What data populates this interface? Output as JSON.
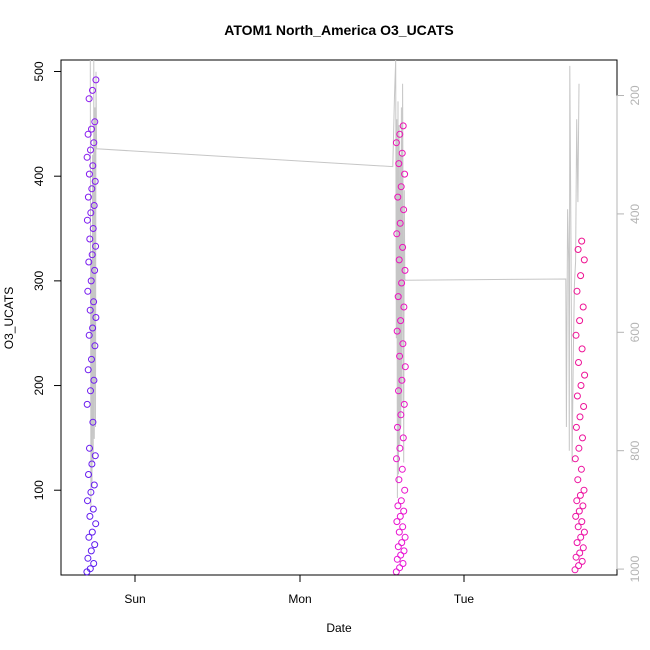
{
  "chart_data": {
    "type": "scatter",
    "title": "ATOM1 North_America O3_UCATS",
    "xlabel": "Date",
    "ylabel": "O3_UCATS",
    "x_ticks": [
      "Sun",
      "Mon",
      "Tue"
    ],
    "y_ticks": [
      100,
      200,
      300,
      400,
      500
    ],
    "y_range": [
      19,
      511
    ],
    "right_axis_ticks": [
      200,
      400,
      600,
      800,
      1000
    ],
    "right_axis_range": [
      1010,
      140
    ],
    "right_axis_reversed": true,
    "grid": false,
    "legend": "none",
    "colors": {
      "point_start": "#5a1cf0",
      "point_mid": "#e613f0",
      "point_end": "#ee1290",
      "secondary_line": "#c6c6c6",
      "right_axis": "#b4b4b4"
    },
    "series": [
      {
        "x_range": [
          "Sat 17:00",
          "Sat 18:20"
        ],
        "y_min": 22,
        "y_max": 492,
        "values": [
          22,
          25,
          30,
          35,
          42,
          48,
          55,
          60,
          68,
          75,
          82,
          90,
          98,
          105,
          115,
          125,
          133,
          140,
          165,
          182,
          195,
          205,
          215,
          225,
          238,
          248,
          255,
          265,
          272,
          280,
          290,
          300,
          310,
          318,
          325,
          333,
          340,
          350,
          358,
          365,
          372,
          380,
          388,
          395,
          402,
          410,
          418,
          425,
          432,
          440,
          445,
          452,
          474,
          482,
          492
        ]
      },
      {
        "x_range": [
          "Mon 14:00",
          "Mon 15:20"
        ],
        "y_min": 22,
        "y_max": 448,
        "values": [
          22,
          26,
          30,
          34,
          38,
          42,
          46,
          50,
          55,
          60,
          65,
          70,
          75,
          80,
          85,
          90,
          100,
          110,
          120,
          130,
          140,
          150,
          160,
          172,
          182,
          195,
          205,
          218,
          228,
          240,
          252,
          262,
          275,
          285,
          298,
          310,
          320,
          332,
          345,
          355,
          368,
          380,
          390,
          402,
          412,
          422,
          432,
          440,
          448
        ]
      },
      {
        "x_range": [
          "Tue 16:00",
          "Tue 17:25"
        ],
        "y_min": 24,
        "y_max": 338,
        "values": [
          24,
          28,
          32,
          36,
          40,
          45,
          50,
          55,
          60,
          65,
          70,
          75,
          80,
          85,
          90,
          95,
          100,
          110,
          120,
          130,
          140,
          150,
          160,
          170,
          180,
          190,
          200,
          210,
          222,
          235,
          248,
          262,
          275,
          290,
          305,
          320,
          330,
          338
        ]
      }
    ],
    "secondary_line": {
      "name": "",
      "axis": "right",
      "path_points": [
        [
          "Sat 17:30",
          140
        ],
        [
          "Sat 17:35",
          900
        ],
        [
          "Sat 17:40",
          480
        ],
        [
          "Sat 17:45",
          860
        ],
        [
          "Sat 17:50",
          300
        ],
        [
          "Sat 17:55",
          820
        ],
        [
          "Sat 18:00",
          140
        ],
        [
          "Sat 18:05",
          780
        ],
        [
          "Sat 18:10",
          220
        ],
        [
          "Sat 18:15",
          760
        ],
        [
          "Sat 18:20",
          160
        ],
        [
          "Sat 18:25",
          290
        ],
        [
          "Mon 13:30",
          320
        ],
        [
          "Mon 13:45",
          200
        ],
        [
          "Mon 13:55",
          140
        ],
        [
          "Mon 14:00",
          610
        ],
        [
          "Mon 14:05",
          240
        ],
        [
          "Mon 14:10",
          880
        ],
        [
          "Mon 14:15",
          210
        ],
        [
          "Mon 14:20",
          840
        ],
        [
          "Mon 14:25",
          250
        ],
        [
          "Mon 14:30",
          790
        ],
        [
          "Mon 14:35",
          300
        ],
        [
          "Mon 14:40",
          760
        ],
        [
          "Mon 14:45",
          220
        ],
        [
          "Mon 14:50",
          720
        ],
        [
          "Mon 14:55",
          180
        ],
        [
          "Mon 15:00",
          410
        ],
        [
          "Mon 15:05",
          820
        ],
        [
          "Mon 15:10",
          360
        ],
        [
          "Mon 15:15",
          510
        ],
        [
          "Mon 15:20",
          512
        ],
        [
          "Tue 14:40",
          510
        ],
        [
          "Tue 14:45",
          760
        ],
        [
          "Tue 14:55",
          392
        ],
        [
          "Tue 15:05",
          480
        ],
        [
          "Tue 15:10",
          800
        ],
        [
          "Tue 15:15",
          150
        ],
        [
          "Tue 15:25",
          450
        ],
        [
          "Tue 15:35",
          820
        ],
        [
          "Tue 15:45",
          640
        ],
        [
          "Tue 15:55",
          520
        ],
        [
          "Tue 16:05",
          480
        ],
        [
          "Tue 16:15",
          240
        ],
        [
          "Tue 16:25",
          380
        ],
        [
          "Tue 16:35",
          180
        ]
      ]
    }
  }
}
